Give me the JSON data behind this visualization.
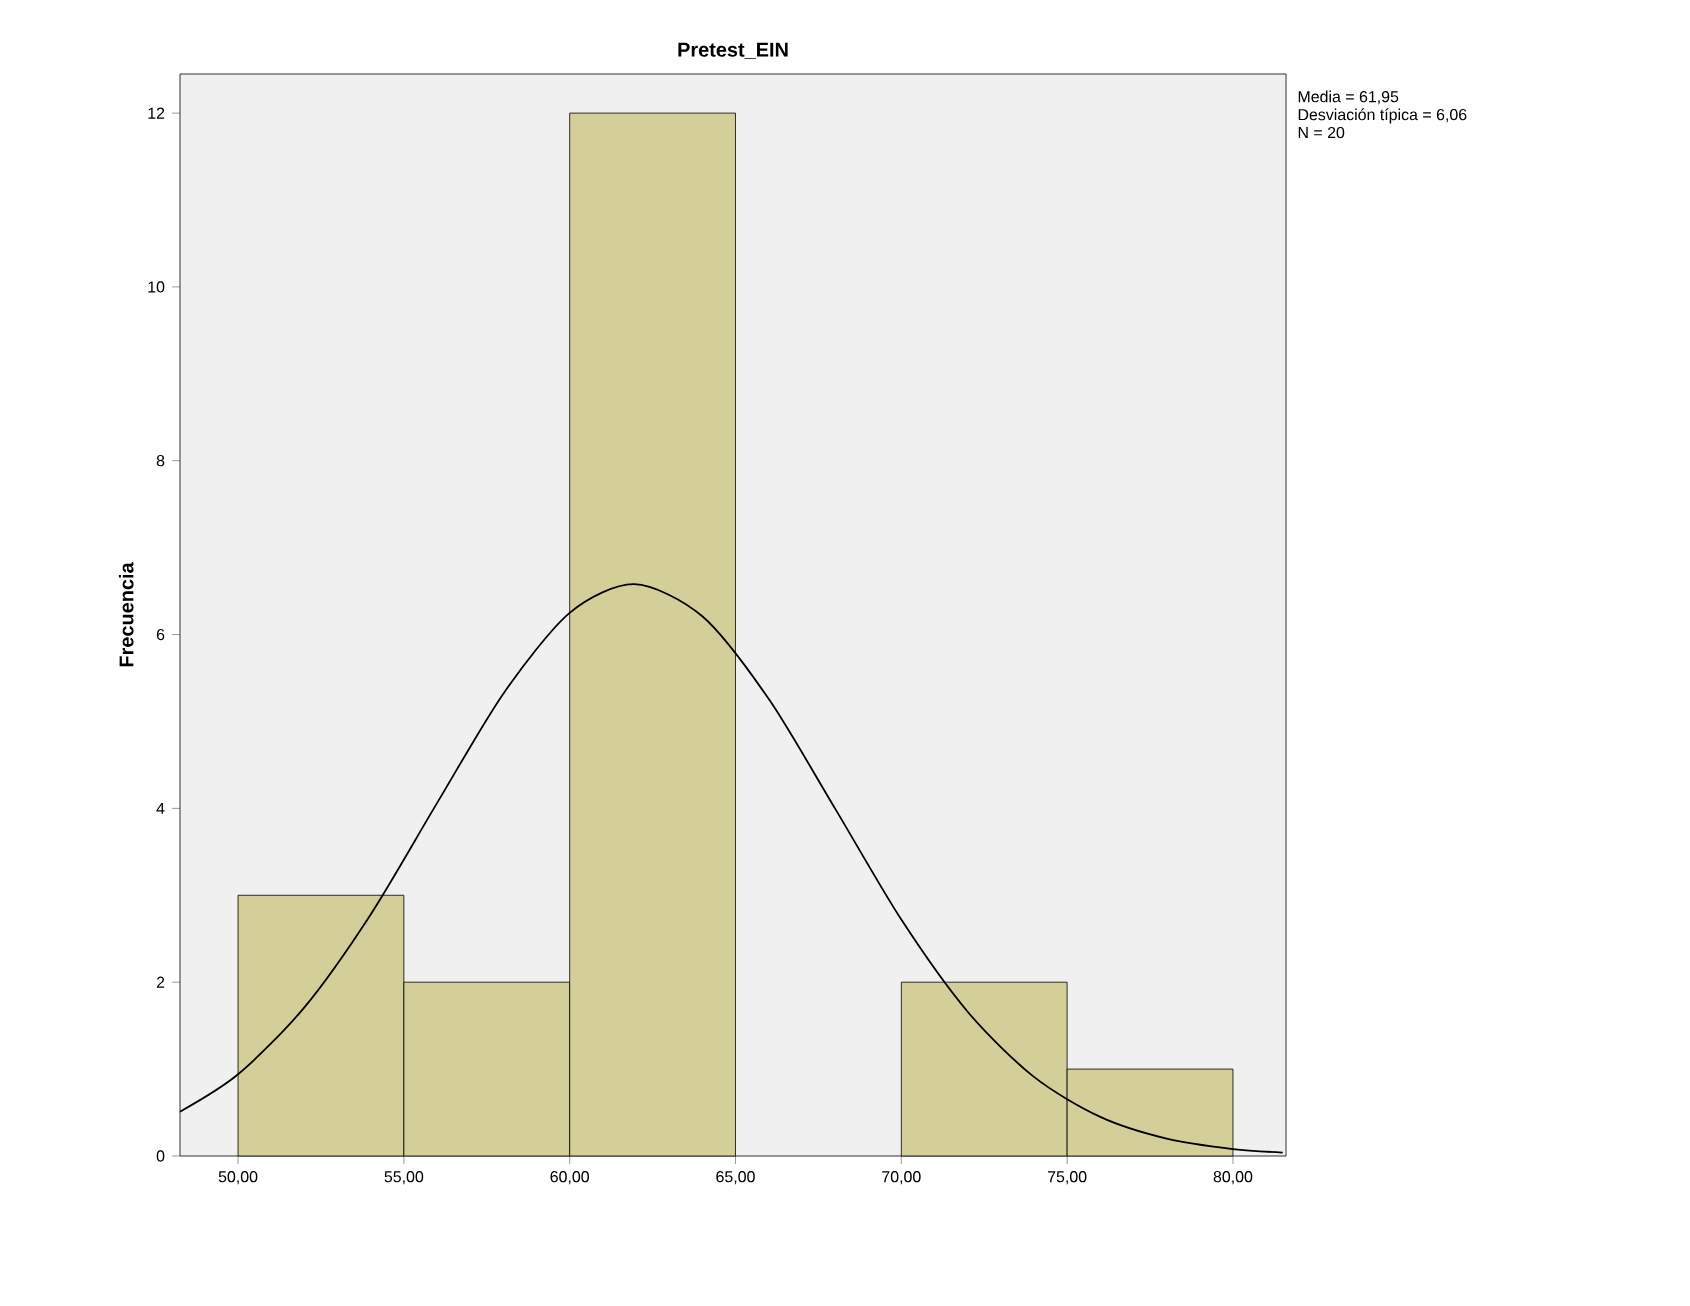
{
  "chart_data": {
    "type": "histogram",
    "title": "Pretest_EIN",
    "ylabel": "Frecuencia",
    "bins": [
      50,
      55,
      60,
      65,
      70,
      75,
      80
    ],
    "values": [
      3,
      2,
      12,
      0,
      2,
      1
    ],
    "color": "#d4cf98",
    "series": [
      {
        "type": "line",
        "color": "#000000",
        "x": [
          48.25,
          50,
          52,
          54,
          56,
          58,
          60,
          61.95,
          64,
          66,
          68,
          70,
          72,
          74,
          76,
          78,
          80,
          81.5
        ],
        "values": [
          0.51,
          0.94,
          1.71,
          2.78,
          4.06,
          5.32,
          6.25,
          6.58,
          6.21,
          5.26,
          4.0,
          2.72,
          1.66,
          0.91,
          0.45,
          0.2,
          0.08,
          0.04
        ]
      }
    ],
    "xlim": [
      48.25,
      81.6
    ],
    "xticks": [
      {
        "value": 50,
        "label": "50,00"
      },
      {
        "value": 55,
        "label": "55,00"
      },
      {
        "value": 60,
        "label": "60,00"
      },
      {
        "value": 65,
        "label": "65,00"
      },
      {
        "value": 70,
        "label": "70,00"
      },
      {
        "value": 75,
        "label": "75,00"
      },
      {
        "value": 80,
        "label": "80,00"
      }
    ],
    "ylim": [
      0,
      12.45
    ],
    "yticks": [
      0,
      2,
      4,
      6,
      8,
      10,
      12
    ],
    "annotations": [
      "Media = 61,95",
      "Desviación típica = 6,06",
      "N = 20"
    ]
  }
}
